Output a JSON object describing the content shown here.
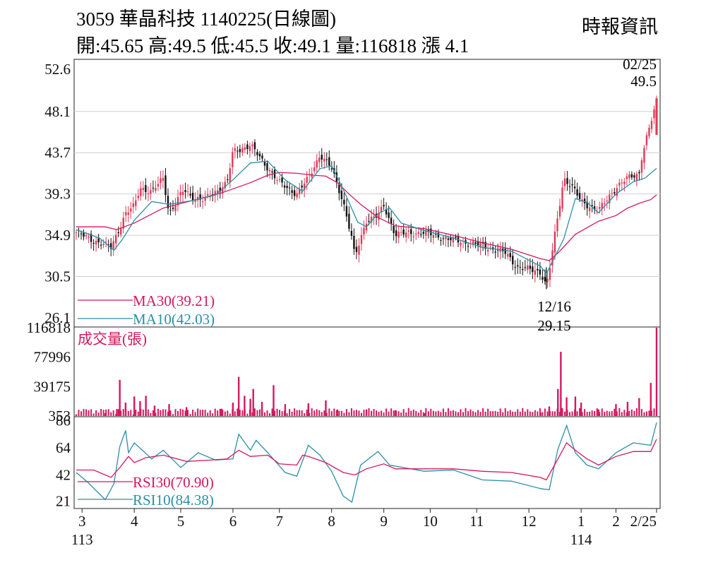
{
  "header": {
    "title": "3059  華晶科技 1140225(日線圖)",
    "quote": "開:45.65 高:49.5 低:45.5 收:49.1 量:116818 漲 4.1",
    "source": "時報資訊"
  },
  "colors": {
    "up": "#e03a58",
    "down": "#111111",
    "ma30": "#d4185f",
    "ma10": "#2a8fa8",
    "volume": "#d4185f",
    "rsi30": "#d4185f",
    "rsi10": "#2a8fa8",
    "grid": "#cfcfcf"
  },
  "chart_data": [
    {
      "type": "candlestick",
      "ylim": [
        26.1,
        52.6
      ],
      "yticks": [
        "52.6",
        "48.1",
        "43.7",
        "39.3",
        "34.9",
        "30.5",
        "26.1"
      ],
      "legend": [
        "MA30(39.21)",
        "MA10(42.03)"
      ],
      "annotations": {
        "high_date": "02/25",
        "high_value": "49.5",
        "low_date": "12/16",
        "low_value": "29.15"
      },
      "close_path": [
        [
          0,
          35.2
        ],
        [
          0.02,
          34.6
        ],
        [
          0.06,
          33.6
        ],
        [
          0.085,
          37.2
        ],
        [
          0.1,
          38
        ],
        [
          0.11,
          40
        ],
        [
          0.13,
          39.5
        ],
        [
          0.15,
          41
        ],
        [
          0.16,
          37.2
        ],
        [
          0.185,
          39.7
        ],
        [
          0.2,
          39
        ],
        [
          0.22,
          38.6
        ],
        [
          0.26,
          40.5
        ],
        [
          0.27,
          43.8
        ],
        [
          0.3,
          44.5
        ],
        [
          0.35,
          40.5
        ],
        [
          0.38,
          39.3
        ],
        [
          0.4,
          41
        ],
        [
          0.42,
          43.5
        ],
        [
          0.44,
          42
        ],
        [
          0.46,
          38.5
        ],
        [
          0.475,
          34.5
        ],
        [
          0.48,
          32.5
        ],
        [
          0.5,
          36.5
        ],
        [
          0.52,
          37
        ],
        [
          0.53,
          38
        ],
        [
          0.54,
          36.5
        ],
        [
          0.55,
          35
        ],
        [
          0.6,
          35.2
        ],
        [
          0.64,
          34.5
        ],
        [
          0.7,
          33.8
        ],
        [
          0.74,
          33
        ],
        [
          0.76,
          31.5
        ],
        [
          0.8,
          31
        ],
        [
          0.81,
          29.5
        ],
        [
          0.815,
          31
        ],
        [
          0.83,
          37
        ],
        [
          0.84,
          41
        ],
        [
          0.855,
          40
        ],
        [
          0.87,
          38.5
        ],
        [
          0.9,
          37.5
        ],
        [
          0.93,
          40
        ],
        [
          0.95,
          41
        ],
        [
          0.97,
          41.5
        ],
        [
          0.975,
          43.5
        ],
        [
          1,
          49.1
        ]
      ],
      "ma30_path": [
        [
          0,
          35.8
        ],
        [
          0.05,
          35.8
        ],
        [
          0.07,
          35.5
        ],
        [
          0.1,
          36.2
        ],
        [
          0.15,
          37.8
        ],
        [
          0.2,
          38.6
        ],
        [
          0.25,
          39.4
        ],
        [
          0.3,
          40.5
        ],
        [
          0.33,
          41.3
        ],
        [
          0.35,
          41.6
        ],
        [
          0.38,
          41.5
        ],
        [
          0.41,
          41.3
        ],
        [
          0.43,
          41.2
        ],
        [
          0.45,
          40.5
        ],
        [
          0.47,
          39.3
        ],
        [
          0.49,
          38.2
        ],
        [
          0.52,
          36.8
        ],
        [
          0.55,
          35.9
        ],
        [
          0.6,
          35.6
        ],
        [
          0.65,
          34.9
        ],
        [
          0.7,
          34.1
        ],
        [
          0.75,
          33.4
        ],
        [
          0.78,
          32.8
        ],
        [
          0.8,
          32.4
        ],
        [
          0.815,
          32.2
        ],
        [
          0.83,
          33
        ],
        [
          0.86,
          35
        ],
        [
          0.9,
          36.4
        ],
        [
          0.93,
          37
        ],
        [
          0.95,
          37.8
        ],
        [
          0.97,
          38.3
        ],
        [
          0.99,
          38.7
        ],
        [
          1,
          39.21
        ]
      ],
      "ma10_path": [
        [
          0,
          35.5
        ],
        [
          0.04,
          34.6
        ],
        [
          0.065,
          33.3
        ],
        [
          0.08,
          34.5
        ],
        [
          0.1,
          36.5
        ],
        [
          0.13,
          38.5
        ],
        [
          0.16,
          38.2
        ],
        [
          0.2,
          38.6
        ],
        [
          0.24,
          39.2
        ],
        [
          0.27,
          40.8
        ],
        [
          0.3,
          42.6
        ],
        [
          0.33,
          42.8
        ],
        [
          0.36,
          40.8
        ],
        [
          0.39,
          39.6
        ],
        [
          0.42,
          42
        ],
        [
          0.44,
          42.3
        ],
        [
          0.46,
          39.8
        ],
        [
          0.485,
          36.3
        ],
        [
          0.5,
          35.8
        ],
        [
          0.52,
          37.2
        ],
        [
          0.54,
          37.8
        ],
        [
          0.56,
          36.2
        ],
        [
          0.6,
          35.4
        ],
        [
          0.65,
          34.6
        ],
        [
          0.7,
          33.6
        ],
        [
          0.75,
          33.2
        ],
        [
          0.8,
          31.6
        ],
        [
          0.81,
          30.8
        ],
        [
          0.84,
          34.5
        ],
        [
          0.86,
          38.8
        ],
        [
          0.88,
          38.4
        ],
        [
          0.9,
          37.3
        ],
        [
          0.93,
          39.3
        ],
        [
          0.96,
          40.6
        ],
        [
          0.98,
          41
        ],
        [
          1,
          42.03
        ]
      ]
    },
    {
      "type": "bar",
      "title": "成交量(張)",
      "ylim": [
        353,
        116818
      ],
      "yticks": [
        "116818",
        "77996",
        "39175",
        "353"
      ],
      "bars": [
        [
          0,
          2500
        ],
        [
          0.05,
          4000
        ],
        [
          0.07,
          9500
        ],
        [
          0.075,
          48000
        ],
        [
          0.085,
          18000
        ],
        [
          0.1,
          26000
        ],
        [
          0.11,
          20000
        ],
        [
          0.12,
          27000
        ],
        [
          0.135,
          14000
        ],
        [
          0.16,
          16000
        ],
        [
          0.19,
          12000
        ],
        [
          0.25,
          10000
        ],
        [
          0.27,
          18000
        ],
        [
          0.28,
          52000
        ],
        [
          0.29,
          27000
        ],
        [
          0.3,
          23000
        ],
        [
          0.305,
          36000
        ],
        [
          0.32,
          19000
        ],
        [
          0.34,
          41000
        ],
        [
          0.36,
          16000
        ],
        [
          0.4,
          17000
        ],
        [
          0.43,
          21000
        ],
        [
          0.45,
          9000
        ],
        [
          0.5,
          9000
        ],
        [
          0.55,
          8000
        ],
        [
          0.6,
          4000
        ],
        [
          0.8,
          5000
        ],
        [
          0.815,
          13000
        ],
        [
          0.83,
          36000
        ],
        [
          0.835,
          85000
        ],
        [
          0.845,
          25000
        ],
        [
          0.86,
          26000
        ],
        [
          0.87,
          18000
        ],
        [
          0.9,
          9000
        ],
        [
          0.93,
          16000
        ],
        [
          0.95,
          19000
        ],
        [
          0.97,
          24000
        ],
        [
          0.99,
          44000
        ],
        [
          1,
          116818
        ]
      ]
    },
    {
      "type": "line",
      "yticks": [
        "86",
        "64",
        "42",
        "21"
      ],
      "ylim": [
        16,
        88
      ],
      "legend": [
        "RSI30(70.90)",
        "RSI10(84.38)"
      ],
      "rsi30_path": [
        [
          0,
          46
        ],
        [
          0.03,
          46
        ],
        [
          0.06,
          40
        ],
        [
          0.075,
          48
        ],
        [
          0.09,
          57
        ],
        [
          0.1,
          52
        ],
        [
          0.12,
          56
        ],
        [
          0.15,
          58
        ],
        [
          0.19,
          53
        ],
        [
          0.23,
          54
        ],
        [
          0.26,
          55
        ],
        [
          0.28,
          62
        ],
        [
          0.3,
          57
        ],
        [
          0.33,
          58
        ],
        [
          0.35,
          51
        ],
        [
          0.38,
          50
        ],
        [
          0.39,
          58
        ],
        [
          0.4,
          57
        ],
        [
          0.43,
          52
        ],
        [
          0.46,
          44
        ],
        [
          0.48,
          42
        ],
        [
          0.5,
          47
        ],
        [
          0.53,
          51
        ],
        [
          0.55,
          47
        ],
        [
          0.6,
          47
        ],
        [
          0.65,
          47
        ],
        [
          0.7,
          45
        ],
        [
          0.75,
          44
        ],
        [
          0.8,
          40
        ],
        [
          0.81,
          38
        ],
        [
          0.83,
          55
        ],
        [
          0.845,
          68
        ],
        [
          0.86,
          62
        ],
        [
          0.88,
          55
        ],
        [
          0.9,
          50
        ],
        [
          0.93,
          57
        ],
        [
          0.96,
          61
        ],
        [
          0.99,
          61
        ],
        [
          1,
          70.9
        ]
      ],
      "rsi10_path": [
        [
          0,
          44
        ],
        [
          0.02,
          36
        ],
        [
          0.05,
          22
        ],
        [
          0.065,
          35
        ],
        [
          0.075,
          65
        ],
        [
          0.085,
          78
        ],
        [
          0.09,
          60
        ],
        [
          0.1,
          68
        ],
        [
          0.13,
          55
        ],
        [
          0.15,
          62
        ],
        [
          0.18,
          48
        ],
        [
          0.21,
          60
        ],
        [
          0.24,
          54
        ],
        [
          0.27,
          55
        ],
        [
          0.28,
          75
        ],
        [
          0.3,
          62
        ],
        [
          0.31,
          70
        ],
        [
          0.33,
          60
        ],
        [
          0.36,
          44
        ],
        [
          0.38,
          41
        ],
        [
          0.4,
          66
        ],
        [
          0.42,
          58
        ],
        [
          0.44,
          45
        ],
        [
          0.46,
          25
        ],
        [
          0.475,
          20
        ],
        [
          0.49,
          50
        ],
        [
          0.52,
          61
        ],
        [
          0.54,
          50
        ],
        [
          0.6,
          45
        ],
        [
          0.65,
          46
        ],
        [
          0.7,
          38
        ],
        [
          0.75,
          37
        ],
        [
          0.8,
          31
        ],
        [
          0.815,
          30
        ],
        [
          0.83,
          63
        ],
        [
          0.845,
          82
        ],
        [
          0.86,
          60
        ],
        [
          0.88,
          50
        ],
        [
          0.9,
          47
        ],
        [
          0.93,
          60
        ],
        [
          0.96,
          68
        ],
        [
          0.99,
          66
        ],
        [
          1,
          84.38
        ]
      ]
    }
  ],
  "xaxis": {
    "ticks": [
      {
        "label": "3",
        "pos": 0.01
      },
      {
        "label": "4",
        "pos": 0.1
      },
      {
        "label": "5",
        "pos": 0.18
      },
      {
        "label": "6",
        "pos": 0.27
      },
      {
        "label": "7",
        "pos": 0.35
      },
      {
        "label": "8",
        "pos": 0.44
      },
      {
        "label": "9",
        "pos": 0.53
      },
      {
        "label": "10",
        "pos": 0.61
      },
      {
        "label": "11",
        "pos": 0.69
      },
      {
        "label": "12",
        "pos": 0.78
      },
      {
        "label": "1",
        "pos": 0.87
      },
      {
        "label": "2",
        "pos": 0.93
      },
      {
        "label": "2/25",
        "pos": 1
      }
    ],
    "year_labels": [
      {
        "label": "113",
        "pos": 0.01
      },
      {
        "label": "114",
        "pos": 0.87
      }
    ]
  }
}
